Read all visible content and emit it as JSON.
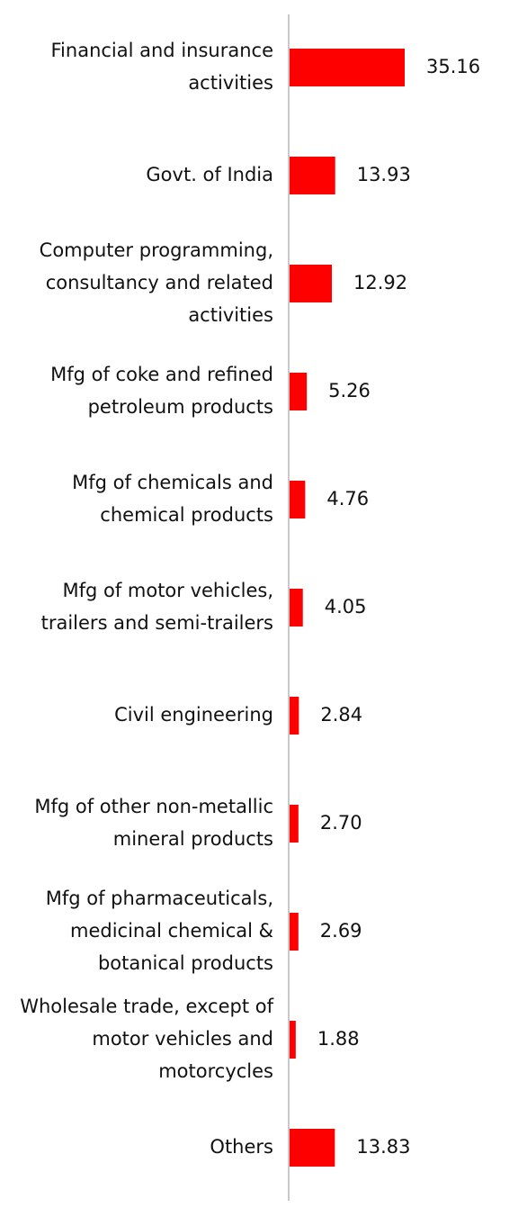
{
  "chart_data": {
    "type": "bar",
    "orientation": "horizontal",
    "categories": [
      [
        "Financial and insurance",
        "activities"
      ],
      [
        "Govt. of India"
      ],
      [
        "Computer programming,",
        "consultancy and related",
        "activities"
      ],
      [
        "Mfg of coke and refined",
        "petroleum products"
      ],
      [
        "Mfg of chemicals and",
        "chemical products"
      ],
      [
        "Mfg of motor vehicles,",
        "trailers and semi-trailers"
      ],
      [
        "Civil engineering"
      ],
      [
        "Mfg of other non-metallic",
        "mineral products"
      ],
      [
        "Mfg of pharmaceuticals,",
        "medicinal chemical &",
        "botanical products"
      ],
      [
        "Wholesale trade, except of",
        "motor vehicles and",
        "motorcycles"
      ],
      [
        "Others"
      ]
    ],
    "values": [
      35.16,
      13.93,
      12.92,
      5.26,
      4.76,
      4.05,
      2.84,
      2.7,
      2.69,
      1.88,
      13.83
    ],
    "value_labels": [
      "35.16",
      "13.93",
      "12.92",
      "5.26",
      "4.76",
      "4.05",
      "2.84",
      "2.70",
      "2.69",
      "1.88",
      "13.83"
    ],
    "bar_color": "#ff0000",
    "axis_color": "#c8c8c8",
    "grid": false,
    "legend": "none",
    "title": "",
    "xlabel": "",
    "ylabel": ""
  }
}
